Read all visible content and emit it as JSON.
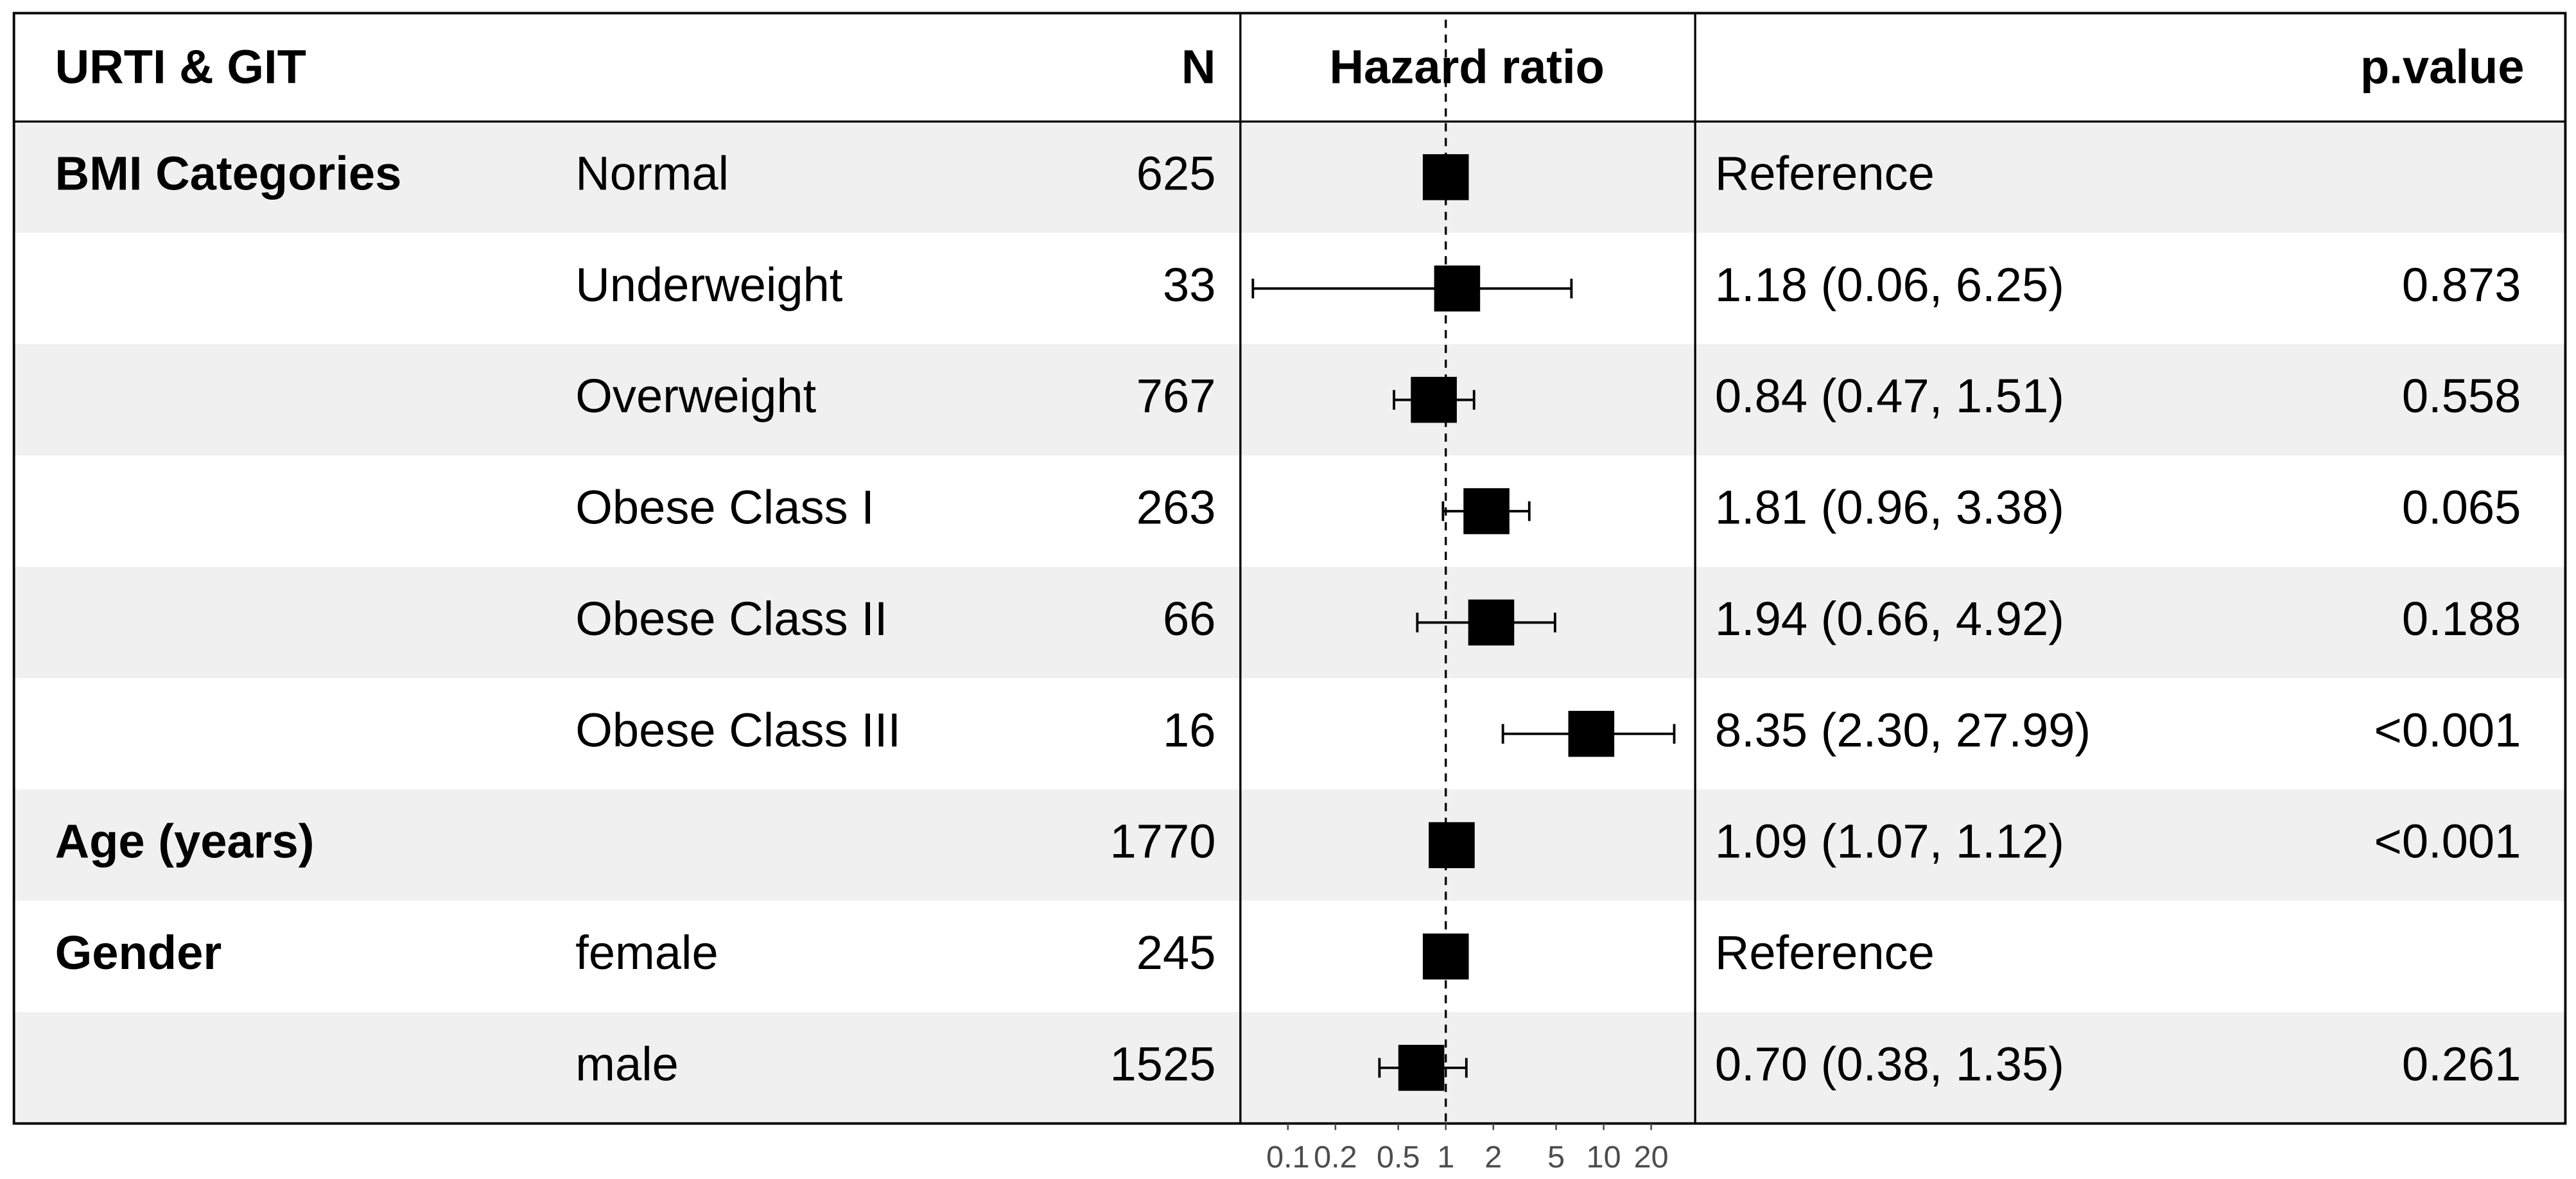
{
  "chart_data": {
    "type": "forest",
    "header": {
      "title": "URTI & GIT",
      "n": "N",
      "plot": "Hazard ratio",
      "p": "p.value"
    },
    "rows": [
      {
        "variable": "BMI Categories",
        "level": "Normal",
        "n": 625,
        "estimate": 1,
        "label": "Reference"
      },
      {
        "level": "Underweight",
        "n": 33,
        "estimate": 1.18,
        "lower": 0.06,
        "upper": 6.25,
        "label": "1.18 (0.06, 6.25)",
        "p": "0.873"
      },
      {
        "level": "Overweight",
        "n": 767,
        "estimate": 0.84,
        "lower": 0.47,
        "upper": 1.51,
        "label": "0.84 (0.47, 1.51)",
        "p": "0.558"
      },
      {
        "level": "Obese Class I",
        "n": 263,
        "estimate": 1.81,
        "lower": 0.96,
        "upper": 3.38,
        "label": "1.81 (0.96, 3.38)",
        "p": "0.065"
      },
      {
        "level": "Obese Class II",
        "n": 66,
        "estimate": 1.94,
        "lower": 0.66,
        "upper": 4.92,
        "label": "1.94 (0.66, 4.92)",
        "p": "0.188"
      },
      {
        "level": "Obese Class III",
        "n": 16,
        "estimate": 8.35,
        "lower": 2.3,
        "upper": 27.99,
        "label": "8.35 (2.30, 27.99)",
        "p": "<0.001"
      },
      {
        "variable": "Age (years)",
        "n": 1770,
        "estimate": 1.09,
        "lower": 1.07,
        "upper": 1.12,
        "label": "1.09 (1.07, 1.12)",
        "p": "<0.001"
      },
      {
        "variable": "Gender",
        "level": "female",
        "n": 245,
        "estimate": 1,
        "label": "Reference"
      },
      {
        "level": "male",
        "n": 1525,
        "estimate": 0.7,
        "lower": 0.38,
        "upper": 1.35,
        "label": "0.70 (0.38, 1.35)",
        "p": "0.261"
      }
    ],
    "xlim": [
      0.05,
      38
    ],
    "xticks": [
      0.1,
      0.2,
      0.5,
      1,
      2,
      5,
      10,
      20
    ],
    "xlog": true,
    "reference_line": 1,
    "stripes": true,
    "color": "#000000"
  }
}
